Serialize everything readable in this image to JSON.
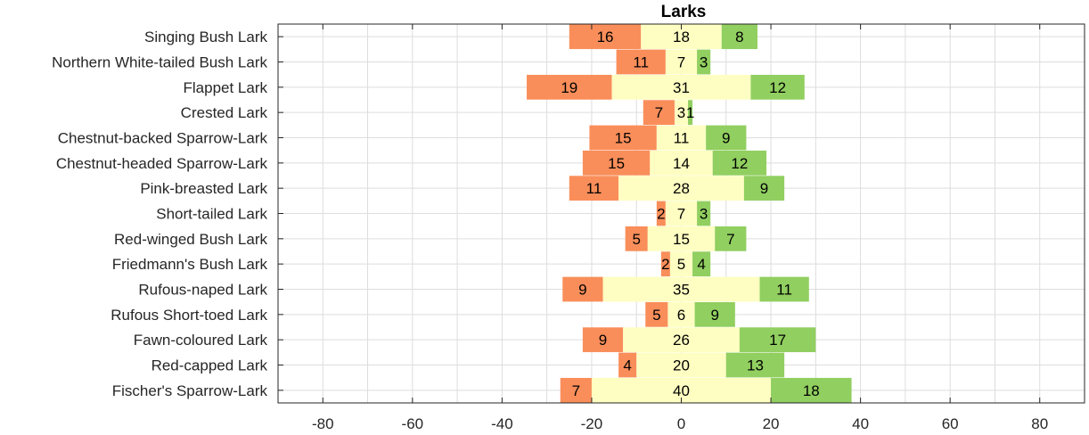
{
  "chart_data": {
    "type": "bar",
    "orientation": "horizontal",
    "stacked": "diverging",
    "title": "Larks",
    "xlabel": "",
    "ylabel": "",
    "xlim": [
      -90,
      90
    ],
    "xticks": [
      -80,
      -60,
      -40,
      -20,
      0,
      20,
      40,
      60,
      80
    ],
    "grid": true,
    "categories": [
      "Singing Bush Lark",
      "Northern White-tailed Bush Lark",
      "Flappet Lark",
      "Crested Lark",
      "Chestnut-backed Sparrow-Lark",
      "Chestnut-headed Sparrow-Lark",
      "Pink-breasted Lark",
      "Short-tailed Lark",
      "Red-winged Bush Lark",
      "Friedmann's Bush Lark",
      "Rufous-naped Lark",
      "Rufous Short-toed Lark",
      "Fawn-coloured Lark",
      "Red-capped Lark",
      "Fischer's Sparrow-Lark"
    ],
    "series": [
      {
        "color": "#f98e5a",
        "values": [
          16,
          11,
          19,
          7,
          15,
          15,
          11,
          2,
          5,
          2,
          9,
          5,
          9,
          4,
          7
        ]
      },
      {
        "color": "#fefec2",
        "values": [
          18,
          7,
          31,
          3,
          11,
          14,
          28,
          7,
          15,
          5,
          35,
          6,
          26,
          20,
          40
        ]
      },
      {
        "color": "#91cf60",
        "values": [
          8,
          3,
          12,
          1,
          9,
          12,
          9,
          3,
          7,
          4,
          11,
          9,
          17,
          13,
          18
        ]
      }
    ]
  }
}
